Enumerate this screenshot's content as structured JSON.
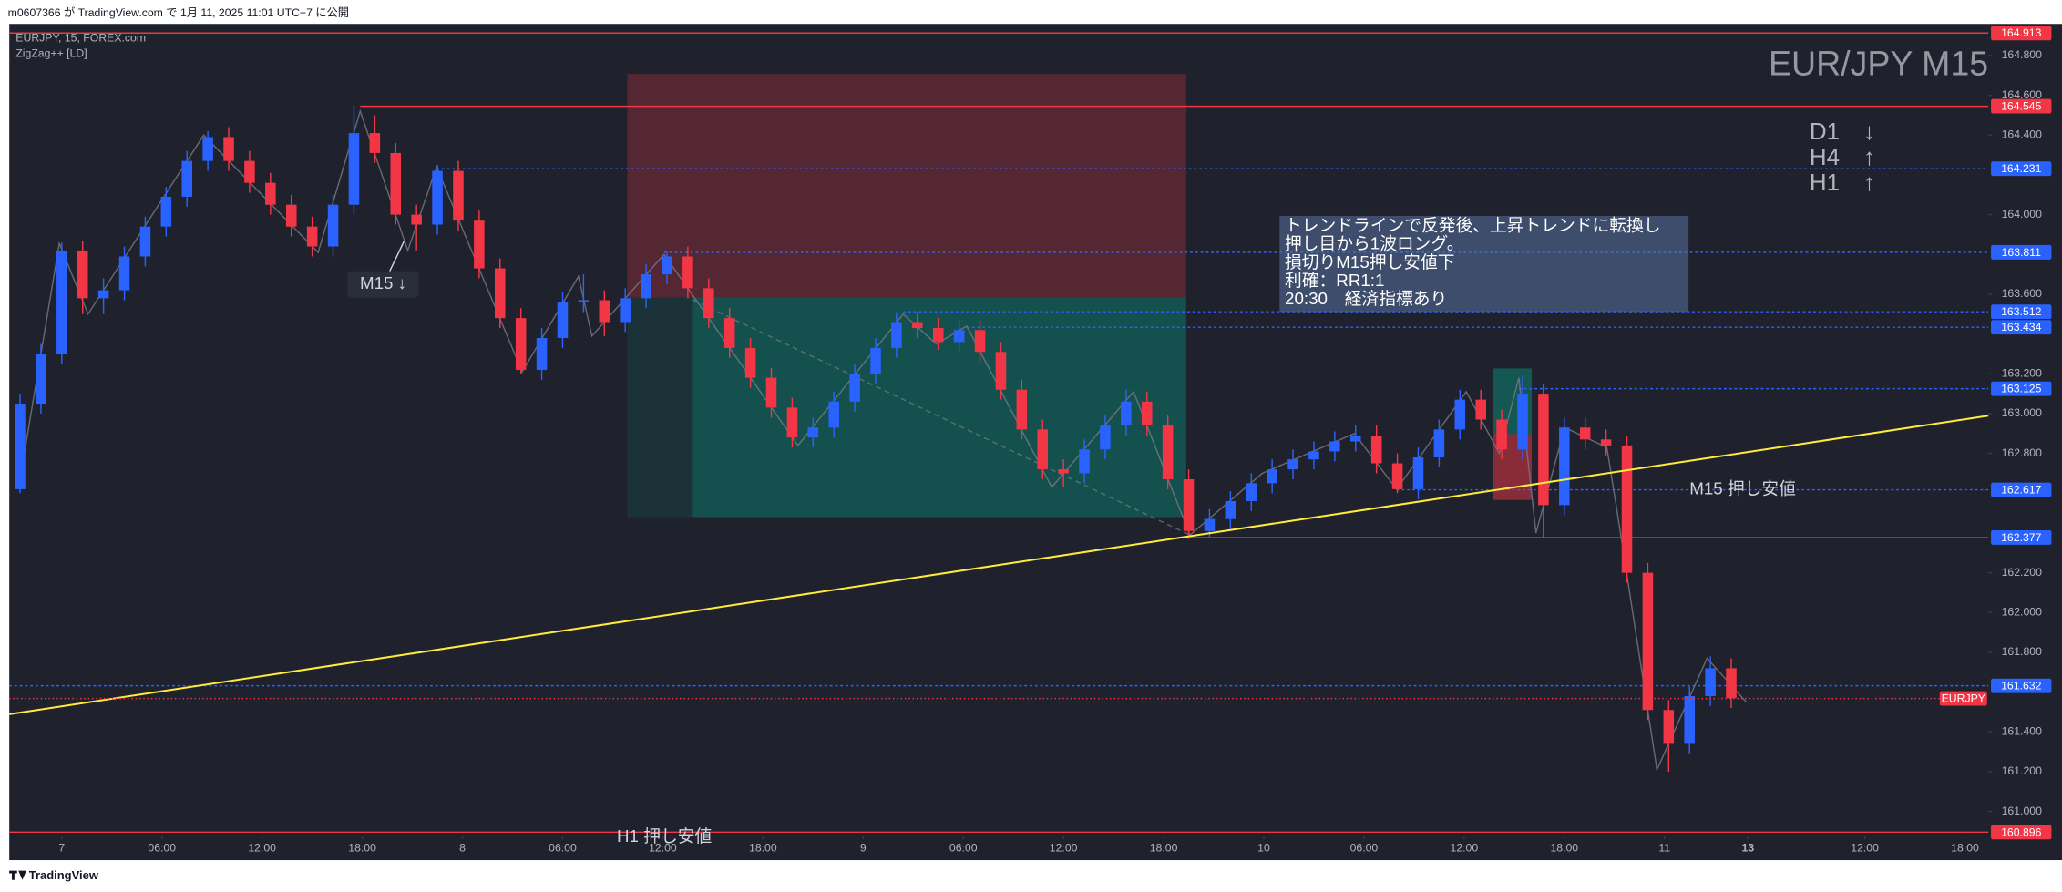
{
  "header": "m0607366 が TradingView.com で 1月 11, 2025 11:01 UTC+7 に公開",
  "footer": "TradingView",
  "chart_data": {
    "type": "candlestick",
    "symbol": "EURJPY, 15, FOREX.com",
    "indicator": "ZigZag++ [LD]",
    "watermark": "EUR/JPY M15",
    "trend_labels": [
      "D1　↓",
      "H4　↑",
      "H1　↑"
    ],
    "note": [
      "トレンドラインで反発後、上昇トレンドに転換し",
      "押し目から1波ロング。",
      "損切りM15押し安値下",
      "利確：RR1:1",
      "20:30　経済指標あり"
    ],
    "annotations": [
      {
        "text": "M15 ↓",
        "x": 77,
        "y": 163.65,
        "box": true
      },
      {
        "text": "M15 押し安値",
        "x": 390,
        "y": 162.617,
        "box": false
      },
      {
        "text": "H1 押し安値",
        "x": 133,
        "y": 160.87,
        "box": false
      }
    ],
    "up_color": "#2962ff",
    "down_color": "#f23645",
    "xlim": [
      -12.6,
      461.6
    ],
    "ylim": [
      160.874,
      164.959
    ],
    "xticks": [
      {
        "value": 0,
        "label": "7"
      },
      {
        "value": 24,
        "label": "06:00"
      },
      {
        "value": 48,
        "label": "12:00"
      },
      {
        "value": 72,
        "label": "18:00"
      },
      {
        "value": 96,
        "label": "8"
      },
      {
        "value": 120,
        "label": "06:00"
      },
      {
        "value": 144,
        "label": "12:00"
      },
      {
        "value": 168,
        "label": "18:00"
      },
      {
        "value": 192,
        "label": "9"
      },
      {
        "value": 216,
        "label": "06:00"
      },
      {
        "value": 240,
        "label": "12:00"
      },
      {
        "value": 264,
        "label": "18:00"
      },
      {
        "value": 288,
        "label": "10"
      },
      {
        "value": 312,
        "label": "06:00"
      },
      {
        "value": 336,
        "label": "12:00"
      },
      {
        "value": 360,
        "label": "18:00"
      },
      {
        "value": 384,
        "label": "11"
      },
      {
        "value": 404,
        "label": "13"
      },
      {
        "value": 432,
        "label": "12:00"
      },
      {
        "value": 456,
        "label": "18:00"
      }
    ],
    "yticks": [
      {
        "value": 164.8,
        "label": "164.800"
      },
      {
        "value": 164.6,
        "label": "164.600"
      },
      {
        "value": 164.4,
        "label": "164.400"
      },
      {
        "value": 164.0,
        "label": "164.000"
      },
      {
        "value": 163.6,
        "label": "163.600"
      },
      {
        "value": 163.2,
        "label": "163.200"
      },
      {
        "value": 163.0,
        "label": "163.000"
      },
      {
        "value": 162.8,
        "label": "162.800"
      },
      {
        "value": 162.2,
        "label": "162.200"
      },
      {
        "value": 162.0,
        "label": "162.000"
      },
      {
        "value": 161.8,
        "label": "161.800"
      },
      {
        "value": 161.4,
        "label": "161.400"
      },
      {
        "value": 161.2,
        "label": "161.200"
      },
      {
        "value": 161.0,
        "label": "161.000"
      }
    ],
    "grid": false,
    "x": [
      -10,
      -5,
      0,
      5,
      10,
      15,
      20,
      25,
      30,
      35,
      40,
      45,
      50,
      55,
      60,
      65,
      70,
      75,
      80,
      85,
      90,
      95,
      100,
      105,
      110,
      115,
      120,
      125,
      130,
      135,
      140,
      145,
      150,
      155,
      160,
      165,
      170,
      175,
      180,
      185,
      190,
      195,
      200,
      205,
      210,
      215,
      220,
      225,
      230,
      235,
      240,
      245,
      250,
      255,
      260,
      265,
      270,
      275,
      280,
      285,
      290,
      295,
      300,
      305,
      310,
      315,
      320,
      325,
      330,
      335,
      340,
      345,
      350,
      355,
      360,
      365,
      370,
      375,
      380,
      385,
      390,
      395,
      400
    ],
    "open": [
      162.62,
      163.05,
      163.3,
      163.82,
      163.58,
      163.62,
      163.79,
      163.94,
      164.09,
      164.27,
      164.39,
      164.27,
      164.16,
      164.05,
      163.94,
      163.84,
      164.05,
      164.41,
      164.31,
      164.0,
      163.95,
      164.22,
      163.97,
      163.73,
      163.48,
      163.22,
      163.38,
      163.56,
      163.57,
      163.46,
      163.58,
      163.7,
      163.79,
      163.63,
      163.48,
      163.33,
      163.18,
      163.03,
      162.88,
      162.93,
      163.06,
      163.2,
      163.33,
      163.46,
      163.43,
      163.36,
      163.42,
      163.31,
      163.12,
      162.92,
      162.72,
      162.7,
      162.82,
      162.94,
      163.06,
      162.94,
      162.67,
      162.41,
      162.47,
      162.56,
      162.65,
      162.72,
      162.77,
      162.81,
      162.86,
      162.89,
      162.75,
      162.62,
      162.78,
      162.92,
      163.07,
      162.97,
      162.82,
      163.1,
      162.54,
      162.93,
      162.87,
      162.84,
      162.2,
      161.51,
      161.34,
      161.58,
      161.72
    ],
    "high": [
      163.1,
      163.35,
      163.86,
      163.87,
      163.68,
      163.84,
      163.99,
      164.14,
      164.32,
      164.42,
      164.44,
      164.32,
      164.21,
      164.1,
      163.99,
      164.1,
      164.55,
      164.5,
      164.36,
      164.05,
      164.25,
      164.27,
      164.02,
      163.78,
      163.53,
      163.43,
      163.61,
      163.7,
      163.62,
      163.63,
      163.75,
      163.82,
      163.84,
      163.68,
      163.53,
      163.38,
      163.23,
      163.08,
      162.98,
      163.11,
      163.25,
      163.38,
      163.51,
      163.51,
      163.48,
      163.47,
      163.47,
      163.36,
      163.17,
      162.97,
      162.77,
      162.87,
      162.99,
      163.12,
      163.11,
      162.99,
      162.72,
      162.52,
      162.61,
      162.7,
      162.77,
      162.82,
      162.86,
      162.91,
      162.94,
      162.94,
      162.8,
      162.83,
      162.97,
      163.12,
      163.12,
      163.02,
      163.19,
      163.15,
      162.98,
      162.98,
      162.92,
      162.89,
      162.25,
      161.56,
      161.63,
      161.78,
      161.77
    ],
    "low": [
      162.6,
      163.0,
      163.25,
      163.5,
      163.5,
      163.57,
      163.74,
      163.89,
      164.04,
      164.22,
      164.22,
      164.11,
      164.0,
      163.89,
      163.79,
      163.79,
      164.0,
      164.26,
      163.95,
      163.82,
      163.9,
      163.92,
      163.68,
      163.43,
      163.2,
      163.17,
      163.33,
      163.51,
      163.39,
      163.41,
      163.53,
      163.65,
      163.58,
      163.43,
      163.28,
      163.13,
      162.98,
      162.83,
      162.83,
      162.88,
      163.01,
      163.15,
      163.28,
      163.38,
      163.32,
      163.31,
      163.26,
      163.07,
      162.87,
      162.67,
      162.63,
      162.65,
      162.77,
      162.89,
      162.89,
      162.62,
      162.37,
      162.38,
      162.42,
      162.51,
      162.6,
      162.67,
      162.72,
      162.76,
      162.81,
      162.7,
      162.6,
      162.57,
      162.73,
      162.87,
      162.92,
      162.77,
      162.77,
      162.38,
      162.49,
      162.82,
      162.79,
      162.15,
      161.46,
      161.2,
      161.29,
      161.53,
      161.52
    ],
    "close": [
      163.05,
      163.3,
      163.82,
      163.58,
      163.62,
      163.79,
      163.94,
      164.09,
      164.27,
      164.39,
      164.27,
      164.16,
      164.05,
      163.94,
      163.84,
      164.05,
      164.41,
      164.31,
      164.0,
      163.95,
      164.22,
      163.97,
      163.73,
      163.48,
      163.22,
      163.38,
      163.56,
      163.57,
      163.46,
      163.58,
      163.7,
      163.79,
      163.63,
      163.48,
      163.33,
      163.18,
      163.03,
      162.88,
      162.93,
      163.06,
      163.2,
      163.33,
      163.46,
      163.43,
      163.36,
      163.42,
      163.31,
      163.12,
      162.92,
      162.72,
      162.7,
      162.82,
      162.94,
      163.06,
      162.94,
      162.67,
      162.41,
      162.47,
      162.56,
      162.65,
      162.72,
      162.77,
      162.81,
      162.86,
      162.89,
      162.75,
      162.62,
      162.78,
      162.92,
      163.07,
      162.97,
      162.82,
      163.1,
      162.54,
      162.93,
      162.87,
      162.84,
      162.2,
      161.51,
      161.34,
      161.58,
      161.72,
      161.57
    ],
    "zigzag": {
      "color": "#787b86",
      "x": [
        -10.4,
        -0.6,
        6.3,
        34.0,
        61.4,
        71.5,
        82.9,
        89.8,
        110.3,
        123.8,
        127.0,
        144.3,
        176.4,
        201.6,
        209.5,
        216.8,
        237.2,
        256.8,
        270.3,
        287.6,
        309.7,
        319.8,
        336.5,
        344.4,
        349.1,
        353.2,
        360.1,
        370.2,
        372.7,
        382.2,
        394.2,
        403.6
      ],
      "y": [
        162.62,
        163.855,
        163.5,
        164.4,
        163.81,
        164.52,
        163.82,
        164.24,
        163.21,
        163.69,
        163.39,
        163.8,
        162.84,
        163.5,
        163.35,
        163.44,
        162.63,
        163.11,
        162.39,
        162.7,
        162.9,
        162.62,
        163.11,
        162.8,
        163.18,
        162.4,
        162.93,
        162.83,
        162.5,
        161.21,
        161.77,
        161.55
      ]
    },
    "dashed_line": {
      "x": [
        151.2,
        270.3
      ],
      "y": [
        163.571,
        162.39
      ],
      "color": "#787b86"
    },
    "trendline": {
      "x": [
        -12.6,
        461.6
      ],
      "y": [
        161.489,
        162.989
      ],
      "color": "#ffeb3b"
    },
    "position": {
      "x": [
        135.5,
        269.4
      ],
      "entry_x": 151.2,
      "stop": 164.707,
      "entry": 163.584,
      "target": 162.48
    },
    "position2": {
      "x": [
        343.0,
        352.2
      ],
      "target": 163.227,
      "entry": 162.897,
      "stop": 162.566
    },
    "levels": [
      {
        "value": 164.913,
        "color": "#f23645",
        "style": "solid",
        "from": -12.6
      },
      {
        "value": 164.545,
        "color": "#f23645",
        "style": "solid",
        "from": 71.5
      },
      {
        "value": 164.231,
        "color": "#2962ff",
        "style": "dotted",
        "from": 89.8
      },
      {
        "value": 163.811,
        "color": "#2962ff",
        "style": "dotted",
        "from": 144.3
      },
      {
        "value": 163.512,
        "color": "#2962ff",
        "style": "dotted",
        "from": 201.6
      },
      {
        "value": 163.434,
        "color": "#2962ff",
        "style": "dotted",
        "from": 216.8
      },
      {
        "value": 163.125,
        "color": "#2962ff",
        "style": "dotted",
        "from": 349.1
      },
      {
        "value": 162.617,
        "color": "#2962ff",
        "style": "dotted",
        "from": 319.8
      },
      {
        "value": 162.377,
        "color": "#2962ff",
        "style": "solid",
        "from": 270.3
      },
      {
        "value": 161.632,
        "color": "#2962ff",
        "style": "dotted",
        "from": -12.6
      },
      {
        "value": 160.896,
        "color": "#f23645",
        "style": "solid",
        "from": -12.6
      }
    ],
    "current": {
      "value": 161.568,
      "label": "EURJPY",
      "color": "#f23645"
    }
  }
}
